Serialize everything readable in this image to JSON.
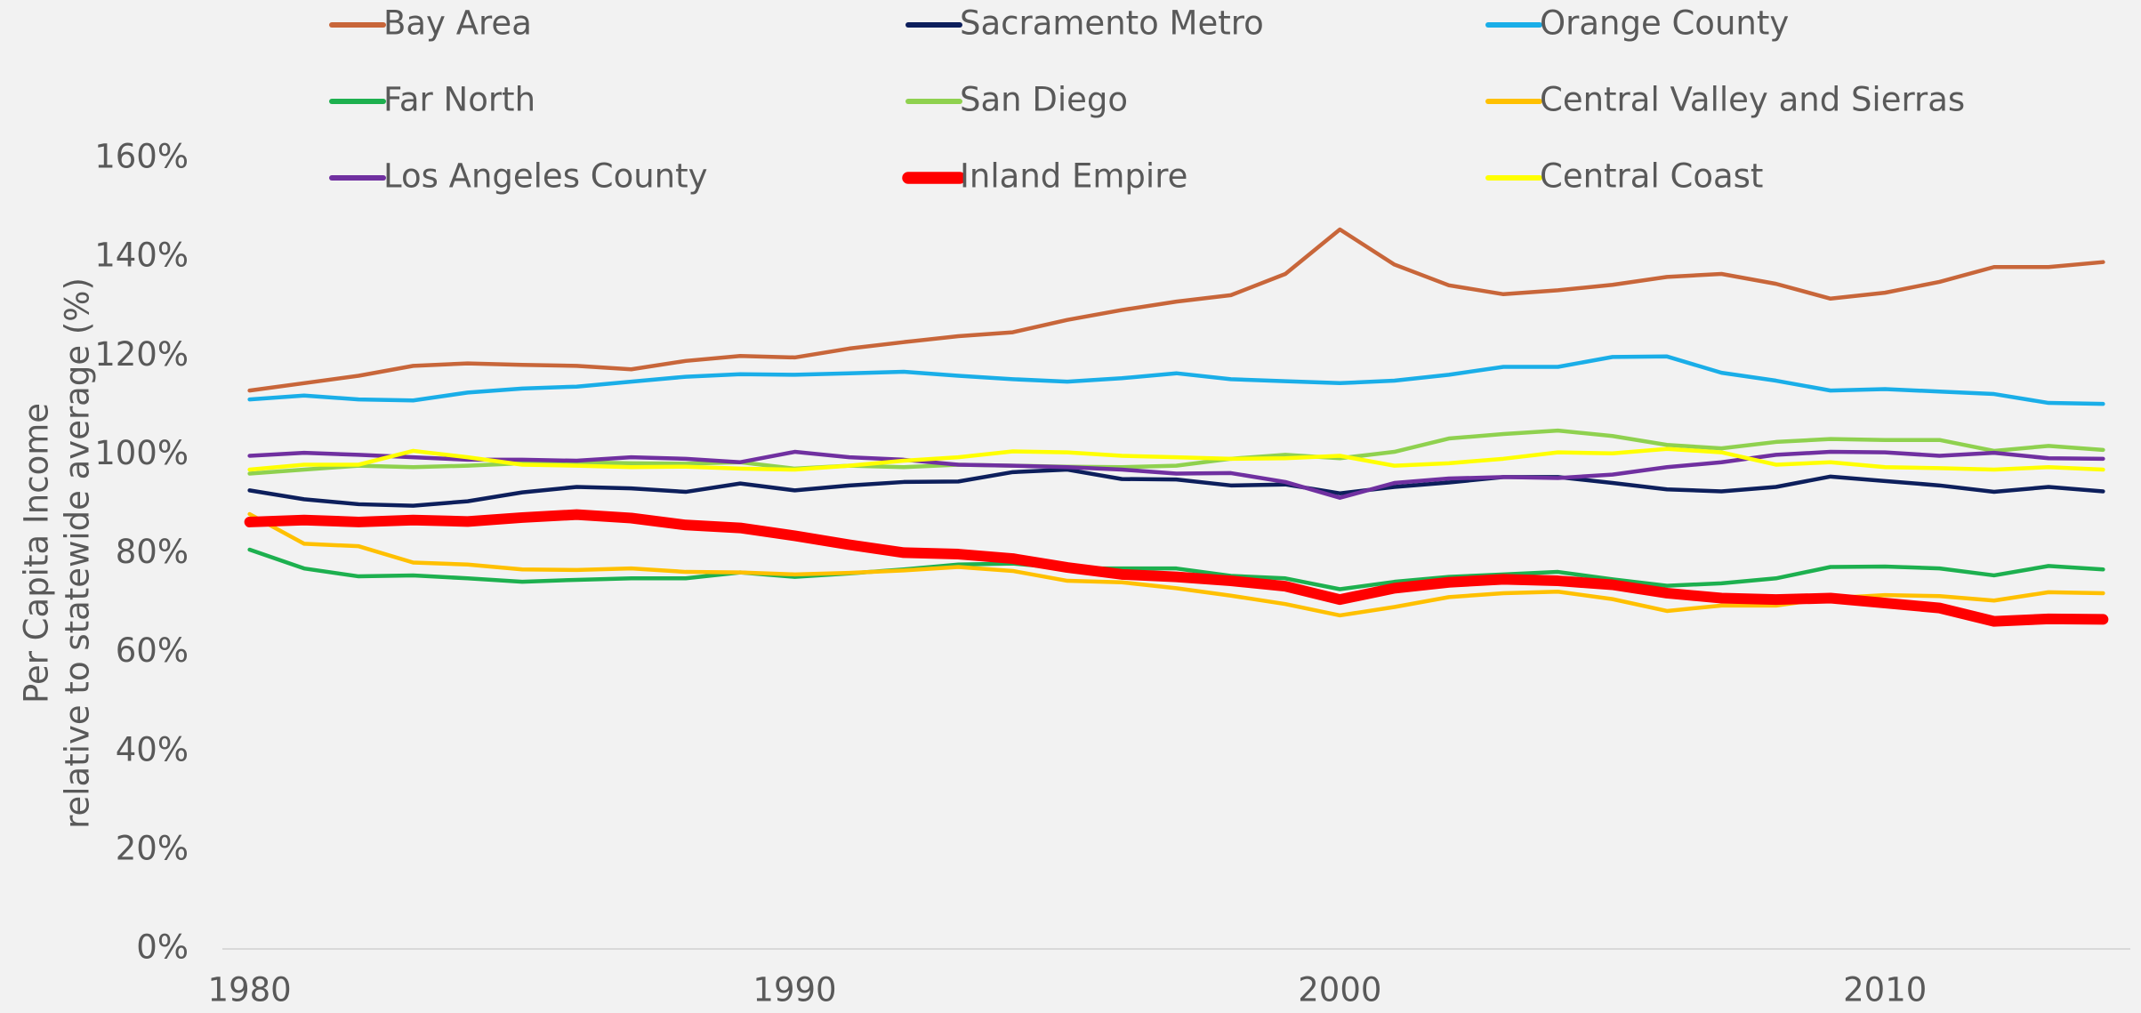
{
  "chart_data": {
    "type": "line",
    "ylabel": [
      "Per Capita Income",
      "relative to statewide average (%)"
    ],
    "x": [
      1980,
      1981,
      1982,
      1983,
      1984,
      1985,
      1986,
      1987,
      1988,
      1989,
      1990,
      1991,
      1992,
      1993,
      1994,
      1995,
      1996,
      1997,
      1998,
      1999,
      2000,
      2001,
      2002,
      2003,
      2004,
      2005,
      2006,
      2007,
      2008,
      2009,
      2010,
      2011,
      2012,
      2013,
      2014
    ],
    "xlim": [
      1979.5,
      2014.5
    ],
    "xticks": [
      1980,
      1990,
      2000,
      2010
    ],
    "ylim": [
      0,
      160
    ],
    "yticks": [
      {
        "value": 0,
        "label": "0%"
      },
      {
        "value": 20,
        "label": "20%"
      },
      {
        "value": 40,
        "label": "40%"
      },
      {
        "value": 60,
        "label": "60%"
      },
      {
        "value": 80,
        "label": "80%"
      },
      {
        "value": 100,
        "label": "100%"
      },
      {
        "value": 120,
        "label": "120%"
      },
      {
        "value": 140,
        "label": "140%"
      },
      {
        "value": 160,
        "label": "160%"
      }
    ],
    "grid": false,
    "legend": "top",
    "series": [
      {
        "name": "Bay Area",
        "color": "#c8663a",
        "line_width": 4.5,
        "values": [
          113,
          114.5,
          116,
          118,
          118.5,
          118.2,
          118,
          117.3,
          119,
          120,
          119.7,
          121.5,
          122.8,
          124,
          124.8,
          127.3,
          129.3,
          131,
          132.3,
          136.6,
          145.6,
          138.5,
          134.3,
          132.5,
          133.3,
          134.4,
          136,
          136.6,
          134.6,
          131.6,
          132.8,
          135,
          138,
          138,
          139
        ]
      },
      {
        "name": "Sacramento Metro",
        "color": "#0d1f5c",
        "line_width": 4.5,
        "values": [
          92.8,
          91,
          90,
          89.7,
          90.6,
          92.4,
          93.5,
          93.2,
          92.5,
          94.2,
          92.8,
          93.8,
          94.5,
          94.6,
          96.5,
          97,
          95.1,
          95,
          93.8,
          94,
          92.2,
          93.5,
          94.4,
          95.5,
          95.5,
          94.3,
          93,
          92.6,
          93.5,
          95.6,
          94.7,
          93.8,
          92.5,
          93.5,
          92.6
        ]
      },
      {
        "name": "Orange County",
        "color": "#1aaee8",
        "line_width": 4.5,
        "values": [
          111.2,
          112,
          111.2,
          111,
          112.6,
          113.4,
          113.8,
          114.8,
          115.8,
          116.3,
          116.2,
          116.5,
          116.8,
          116,
          115.3,
          114.8,
          115.5,
          116.5,
          115.3,
          114.9,
          114.5,
          115,
          116.2,
          117.8,
          117.8,
          119.8,
          119.9,
          116.6,
          115,
          113,
          113.3,
          112.8,
          112.3,
          110.5,
          110.3
        ]
      },
      {
        "name": "Far North",
        "color": "#1db04f",
        "line_width": 4.5,
        "values": [
          80.8,
          77,
          75.4,
          75.6,
          75,
          74.3,
          74.7,
          75,
          75,
          76.2,
          75.3,
          76,
          76.8,
          77.8,
          78,
          77,
          77,
          77,
          75.5,
          75,
          72.8,
          74.3,
          75.3,
          75.8,
          76.3,
          74.8,
          73.5,
          74,
          75,
          77.3,
          77.4,
          77,
          75.6,
          77.5,
          76.8
        ]
      },
      {
        "name": "San Diego",
        "color": "#8fd14f",
        "line_width": 4.5,
        "values": [
          96.2,
          97,
          97.8,
          97.5,
          97.8,
          98.3,
          98.5,
          98.3,
          98.2,
          98.5,
          97.2,
          97.8,
          97.5,
          98,
          97.8,
          97.6,
          97.5,
          97.8,
          99.2,
          100,
          99.3,
          100.6,
          103.3,
          104.2,
          104.9,
          103.8,
          102,
          101.3,
          102.6,
          103.2,
          103,
          103,
          100.8,
          101.8,
          101
        ]
      },
      {
        "name": "Central Valley and Sierras",
        "color": "#ffc000",
        "line_width": 4.5,
        "values": [
          88,
          82,
          81.5,
          78.2,
          77.8,
          76.8,
          76.7,
          77,
          76.3,
          76.2,
          75.8,
          76.1,
          76.6,
          77.3,
          76.5,
          74.5,
          74.2,
          73,
          71.5,
          69.8,
          67.5,
          69.2,
          71.2,
          72,
          72.3,
          70.8,
          68.4,
          69.5,
          69.5,
          71,
          71.6,
          71.4,
          70.5,
          72.2,
          72
        ]
      },
      {
        "name": "Los Angeles County",
        "color": "#7030a0",
        "line_width": 4.5,
        "values": [
          99.8,
          100.4,
          100,
          99.5,
          99,
          99,
          98.8,
          99.5,
          99.2,
          98.5,
          100.6,
          99.5,
          99,
          98,
          97.8,
          97.5,
          97,
          96.2,
          96.3,
          94.5,
          91.3,
          94.3,
          95.2,
          95.5,
          95.3,
          96,
          97.5,
          98.5,
          100,
          100.6,
          100.5,
          99.8,
          100.4,
          99.3,
          99.2
        ]
      },
      {
        "name": "Inland Empire",
        "color": "#ff0000",
        "line_width": 12,
        "values": [
          86.4,
          86.8,
          86.4,
          86.8,
          86.5,
          87.3,
          87.9,
          87.2,
          85.8,
          85.2,
          83.6,
          81.8,
          80.2,
          79.9,
          79,
          77.2,
          75.8,
          75.3,
          74.5,
          73.4,
          70.7,
          73,
          74.2,
          74.8,
          74.5,
          73.7,
          72,
          71,
          70.7,
          71,
          70,
          69,
          66.3,
          66.8,
          66.7
        ]
      },
      {
        "name": "Central Coast",
        "color": "#ffff00",
        "line_width": 4.5,
        "values": [
          97,
          98,
          98,
          100.8,
          99.5,
          98,
          97.8,
          97.5,
          97.6,
          97.2,
          97,
          97.8,
          98.8,
          99.5,
          100.7,
          100.5,
          99.8,
          99.5,
          99.2,
          99.3,
          99.8,
          97.8,
          98.3,
          99.2,
          100.5,
          100.3,
          101.2,
          100.5,
          98,
          98.5,
          97.5,
          97.3,
          97,
          97.5,
          97
        ]
      }
    ]
  }
}
